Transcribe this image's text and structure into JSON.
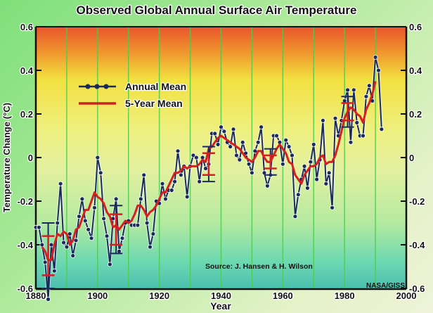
{
  "chart_data": {
    "type": "line",
    "title": "Observed Global Annual Surface Air Temperature",
    "xlabel": "Year",
    "ylabel": "Temperature Change (°C)",
    "xlim": [
      1880,
      2000
    ],
    "ylim": [
      -0.6,
      0.6
    ],
    "xticks": [
      "1880",
      "1900",
      "1920",
      "1940",
      "1960",
      "1980",
      "2000"
    ],
    "xgrid_years": [
      1890,
      1900,
      1910,
      1920,
      1930,
      1940,
      1950,
      1960,
      1970,
      1980,
      1990
    ],
    "yticks_left": [
      "0.6",
      "0.4",
      "0.2",
      "0",
      "-0.2",
      "-0.4",
      "-0.6"
    ],
    "yticks_right": [
      "0.6",
      "0.4",
      "0.2",
      "0",
      "-0.2",
      "-0.4",
      "-0.6"
    ],
    "ytick_values": [
      0.6,
      0.4,
      0.2,
      0,
      -0.2,
      -0.4,
      -0.6
    ],
    "legend": {
      "placement": "upper-left",
      "entries": [
        {
          "label": "Annual Mean",
          "color": "#1a2a5a",
          "marker": "dot"
        },
        {
          "label": "5-Year Mean",
          "color": "#d42020",
          "marker": "none"
        }
      ]
    },
    "annotations": {
      "source": "Source:   J. Hansen & H. Wilson",
      "credit": "NASA/GISS"
    },
    "series": [
      {
        "name": "Annual Mean",
        "color": "#1a2a5a",
        "x": [
          1880,
          1881,
          1882,
          1883,
          1884,
          1885,
          1886,
          1887,
          1888,
          1889,
          1890,
          1891,
          1892,
          1893,
          1894,
          1895,
          1896,
          1897,
          1898,
          1899,
          1900,
          1901,
          1902,
          1903,
          1904,
          1905,
          1906,
          1907,
          1908,
          1909,
          1910,
          1911,
          1912,
          1913,
          1914,
          1915,
          1916,
          1917,
          1918,
          1919,
          1920,
          1921,
          1922,
          1923,
          1924,
          1925,
          1926,
          1927,
          1928,
          1929,
          1930,
          1931,
          1932,
          1933,
          1934,
          1935,
          1936,
          1937,
          1938,
          1939,
          1940,
          1941,
          1942,
          1943,
          1944,
          1945,
          1946,
          1947,
          1948,
          1949,
          1950,
          1951,
          1952,
          1953,
          1954,
          1955,
          1956,
          1957,
          1958,
          1959,
          1960,
          1961,
          1962,
          1963,
          1964,
          1965,
          1966,
          1967,
          1968,
          1969,
          1970,
          1971,
          1972,
          1973,
          1974,
          1975,
          1976,
          1977,
          1978,
          1979,
          1980,
          1981,
          1982,
          1983,
          1984,
          1985,
          1986,
          1987,
          1988,
          1989,
          1990,
          1991,
          1992
        ],
        "values": [
          -0.32,
          -0.32,
          -0.4,
          -0.48,
          -0.65,
          -0.4,
          -0.52,
          -0.3,
          -0.12,
          -0.39,
          -0.41,
          -0.35,
          -0.45,
          -0.38,
          -0.27,
          -0.19,
          -0.29,
          -0.33,
          -0.37,
          -0.23,
          0.0,
          -0.07,
          -0.28,
          -0.36,
          -0.49,
          -0.28,
          -0.19,
          -0.43,
          -0.37,
          -0.3,
          -0.29,
          -0.31,
          -0.31,
          -0.31,
          -0.19,
          -0.08,
          -0.3,
          -0.41,
          -0.35,
          -0.2,
          -0.21,
          -0.12,
          -0.19,
          -0.15,
          -0.15,
          -0.11,
          0.03,
          -0.08,
          -0.04,
          -0.18,
          -0.04,
          0.01,
          0.0,
          -0.11,
          0.0,
          -0.05,
          -0.03,
          0.11,
          0.11,
          0.06,
          0.14,
          0.12,
          0.07,
          0.05,
          0.13,
          0.01,
          -0.01,
          0.07,
          0.02,
          -0.03,
          -0.07,
          0.03,
          0.07,
          0.14,
          -0.07,
          -0.13,
          -0.08,
          0.1,
          0.1,
          0.07,
          -0.03,
          0.08,
          0.05,
          0.01,
          -0.27,
          -0.17,
          -0.1,
          -0.04,
          -0.14,
          -0.02,
          0.06,
          -0.1,
          -0.01,
          0.17,
          -0.12,
          -0.07,
          -0.23,
          0.18,
          0.1,
          0.17,
          0.26,
          0.31,
          0.07,
          0.31,
          0.16,
          0.1,
          0.1,
          0.28,
          0.33,
          0.26,
          0.46,
          0.4,
          0.13
        ]
      },
      {
        "name": "5-Year Mean",
        "color": "#d42020",
        "x": [
          1882,
          1883,
          1884,
          1885,
          1886,
          1887,
          1888,
          1889,
          1890,
          1891,
          1892,
          1893,
          1894,
          1895,
          1896,
          1897,
          1898,
          1899,
          1900,
          1901,
          1902,
          1903,
          1904,
          1905,
          1906,
          1907,
          1908,
          1909,
          1910,
          1911,
          1912,
          1913,
          1914,
          1915,
          1916,
          1917,
          1918,
          1919,
          1920,
          1921,
          1922,
          1923,
          1924,
          1925,
          1926,
          1927,
          1928,
          1929,
          1930,
          1931,
          1932,
          1933,
          1934,
          1935,
          1936,
          1937,
          1938,
          1939,
          1940,
          1941,
          1942,
          1943,
          1944,
          1945,
          1946,
          1947,
          1948,
          1949,
          1950,
          1951,
          1952,
          1953,
          1954,
          1955,
          1956,
          1957,
          1958,
          1959,
          1960,
          1961,
          1962,
          1963,
          1964,
          1965,
          1966,
          1967,
          1968,
          1969,
          1970,
          1971,
          1972,
          1973,
          1974,
          1975,
          1976,
          1977,
          1978,
          1979,
          1980,
          1981,
          1982,
          1983,
          1984,
          1985,
          1986,
          1987,
          1988,
          1989,
          1990
        ],
        "values": [
          -0.41,
          -0.43,
          -0.47,
          -0.47,
          -0.4,
          -0.35,
          -0.36,
          -0.34,
          -0.35,
          -0.4,
          -0.38,
          -0.33,
          -0.32,
          -0.28,
          -0.24,
          -0.24,
          -0.2,
          -0.16,
          -0.18,
          -0.19,
          -0.21,
          -0.25,
          -0.27,
          -0.32,
          -0.31,
          -0.33,
          -0.31,
          -0.29,
          -0.3,
          -0.29,
          -0.26,
          -0.22,
          -0.22,
          -0.24,
          -0.27,
          -0.25,
          -0.24,
          -0.22,
          -0.19,
          -0.16,
          -0.16,
          -0.13,
          -0.1,
          -0.07,
          -0.07,
          -0.06,
          -0.04,
          -0.05,
          -0.04,
          -0.04,
          -0.04,
          -0.03,
          -0.01,
          -0.02,
          0.04,
          0.05,
          0.07,
          0.09,
          0.1,
          0.09,
          0.08,
          0.07,
          0.06,
          0.05,
          0.04,
          0.02,
          0.0,
          -0.01,
          -0.02,
          0.0,
          0.03,
          0.03,
          0.0,
          -0.02,
          -0.02,
          0.01,
          0.04,
          0.06,
          0.04,
          0.02,
          -0.02,
          -0.03,
          -0.08,
          -0.1,
          -0.12,
          -0.08,
          -0.06,
          -0.04,
          -0.04,
          -0.03,
          0.0,
          0.01,
          -0.03,
          -0.02,
          -0.02,
          0.01,
          0.06,
          0.12,
          0.18,
          0.21,
          0.23,
          0.22,
          0.2,
          0.19,
          0.16,
          0.22,
          0.25,
          0.29,
          0.35
        ]
      }
    ]
  }
}
